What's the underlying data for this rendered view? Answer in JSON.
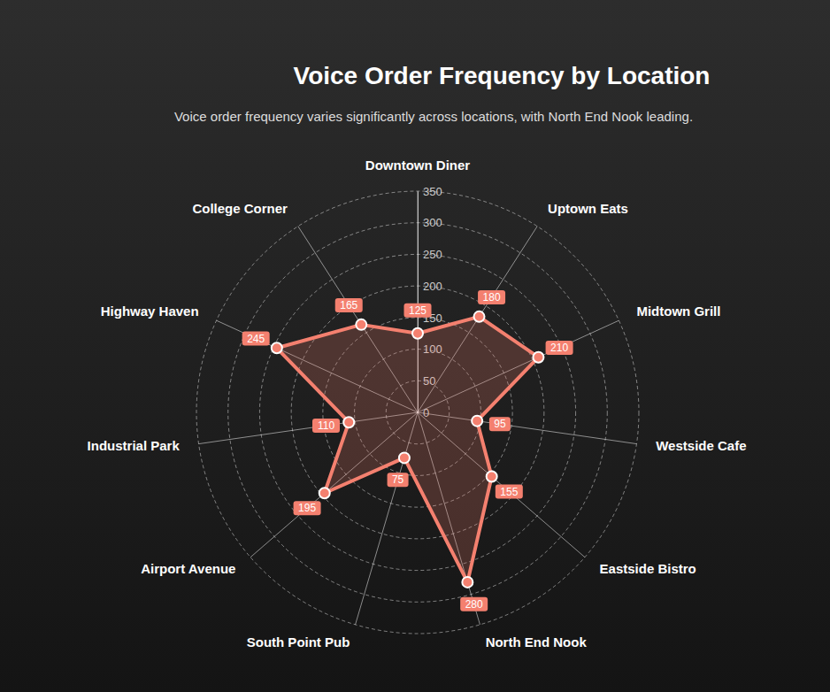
{
  "chart_data": {
    "type": "radar",
    "title": "Voice Order Frequency by Location",
    "subtitle": "Voice order frequency varies significantly across locations, with North End Nook leading.",
    "categories": [
      "Downtown Diner",
      "Uptown Eats",
      "Midtown Grill",
      "Westside Cafe",
      "Eastside Bistro",
      "North End Nook",
      "South Point Pub",
      "Airport Avenue",
      "Industrial Park",
      "Highway Haven",
      "College Corner"
    ],
    "values": [
      125,
      180,
      210,
      95,
      155,
      280,
      75,
      195,
      110,
      245,
      165
    ],
    "color": "#f4806f",
    "ylim": [
      0,
      350
    ],
    "yticks": [
      0,
      50,
      100,
      150,
      200,
      250,
      300,
      350
    ],
    "grid": true,
    "data_labels": true
  }
}
